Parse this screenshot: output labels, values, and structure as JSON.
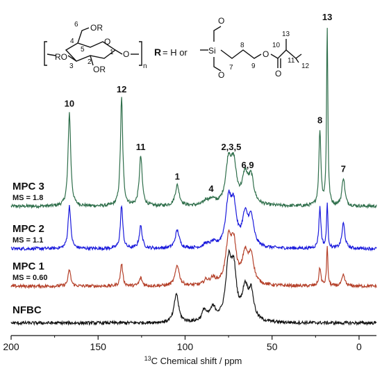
{
  "chart_data": {
    "type": "line",
    "title": "",
    "xlabel": "13C Chemical shift / ppm",
    "xlabel_sup": "13",
    "xlabel_main": "C Chemical shift / ppm",
    "ylabel": "",
    "xlim": [
      200,
      -10
    ],
    "x_reversed": true,
    "x_ticks": [
      200,
      150,
      100,
      50,
      0
    ],
    "x_tick_labels": [
      "200",
      "150",
      "100",
      "50",
      "0"
    ],
    "grid": false,
    "series": [
      {
        "name": "MPC 3",
        "sublabel": "MS = 1.8",
        "color": "#2e6e4a",
        "peaks": [
          {
            "x": 166.5,
            "height": 1.0,
            "width": 0.9
          },
          {
            "x": 136.5,
            "height": 1.15,
            "width": 0.8
          },
          {
            "x": 125.5,
            "height": 0.53,
            "width": 1.0
          },
          {
            "x": 104.5,
            "height": 0.22,
            "width": 1.4
          },
          {
            "x": 88.0,
            "height": 0.05,
            "width": 1.5
          },
          {
            "x": 84.5,
            "height": 0.06,
            "width": 2.0
          },
          {
            "x": 75.0,
            "height": 0.45,
            "width": 2.0
          },
          {
            "x": 72.0,
            "height": 0.38,
            "width": 1.8
          },
          {
            "x": 65.5,
            "height": 0.3,
            "width": 2.0
          },
          {
            "x": 62.0,
            "height": 0.27,
            "width": 1.8
          },
          {
            "x": 22.5,
            "height": 0.8,
            "width": 0.7
          },
          {
            "x": 18.3,
            "height": 1.9,
            "width": 0.45
          },
          {
            "x": 9.0,
            "height": 0.3,
            "width": 1.0
          }
        ]
      },
      {
        "name": "MPC 2",
        "sublabel": "MS = 1.1",
        "color": "#1a1adc",
        "peaks": [
          {
            "x": 166.5,
            "height": 0.48,
            "width": 0.9
          },
          {
            "x": 136.5,
            "height": 0.48,
            "width": 0.8
          },
          {
            "x": 125.5,
            "height": 0.25,
            "width": 1.0
          },
          {
            "x": 104.5,
            "height": 0.2,
            "width": 1.4
          },
          {
            "x": 88.0,
            "height": 0.04,
            "width": 1.5
          },
          {
            "x": 84.0,
            "height": 0.05,
            "width": 2.0
          },
          {
            "x": 75.0,
            "height": 0.5,
            "width": 2.0
          },
          {
            "x": 72.0,
            "height": 0.4,
            "width": 1.8
          },
          {
            "x": 65.5,
            "height": 0.33,
            "width": 2.0
          },
          {
            "x": 62.0,
            "height": 0.3,
            "width": 1.8
          },
          {
            "x": 22.5,
            "height": 0.45,
            "width": 0.7
          },
          {
            "x": 18.3,
            "height": 0.5,
            "width": 0.45
          },
          {
            "x": 9.0,
            "height": 0.28,
            "width": 1.0
          }
        ]
      },
      {
        "name": "MPC 1",
        "sublabel": "MS = 0.60",
        "color": "#b5412a",
        "peaks": [
          {
            "x": 166.5,
            "height": 0.18,
            "width": 0.9
          },
          {
            "x": 136.5,
            "height": 0.25,
            "width": 0.8
          },
          {
            "x": 125.5,
            "height": 0.09,
            "width": 1.0
          },
          {
            "x": 104.5,
            "height": 0.23,
            "width": 1.4
          },
          {
            "x": 88.0,
            "height": 0.05,
            "width": 1.5
          },
          {
            "x": 84.0,
            "height": 0.07,
            "width": 2.0
          },
          {
            "x": 75.0,
            "height": 0.47,
            "width": 2.0
          },
          {
            "x": 72.0,
            "height": 0.4,
            "width": 1.8
          },
          {
            "x": 65.5,
            "height": 0.32,
            "width": 2.0
          },
          {
            "x": 62.0,
            "height": 0.3,
            "width": 1.8
          },
          {
            "x": 22.5,
            "height": 0.2,
            "width": 0.7
          },
          {
            "x": 18.3,
            "height": 0.43,
            "width": 0.45
          },
          {
            "x": 9.0,
            "height": 0.12,
            "width": 1.0
          }
        ]
      },
      {
        "name": "NFBC",
        "sublabel": "",
        "color": "#111111",
        "peaks": [
          {
            "x": 105.0,
            "height": 0.32,
            "width": 1.5
          },
          {
            "x": 89.0,
            "height": 0.12,
            "width": 1.5
          },
          {
            "x": 84.0,
            "height": 0.14,
            "width": 2.2
          },
          {
            "x": 75.0,
            "height": 0.62,
            "width": 2.0
          },
          {
            "x": 72.0,
            "height": 0.5,
            "width": 1.8
          },
          {
            "x": 65.5,
            "height": 0.34,
            "width": 2.0
          },
          {
            "x": 62.0,
            "height": 0.3,
            "width": 1.8
          }
        ]
      }
    ],
    "peak_annotations": [
      {
        "text": "10",
        "x": 166.5,
        "series": 0
      },
      {
        "text": "12",
        "x": 136.5,
        "series": 0
      },
      {
        "text": "11",
        "x": 125.5,
        "series": 0
      },
      {
        "text": "1",
        "x": 104.5,
        "series": 0
      },
      {
        "text": "4",
        "x": 85.0,
        "series": 0
      },
      {
        "text": "2,3,5",
        "x": 73.5,
        "series": 0
      },
      {
        "text": "6,9",
        "x": 64.0,
        "series": 0
      },
      {
        "text": "8",
        "x": 22.5,
        "series": 0
      },
      {
        "text": "13",
        "x": 18.3,
        "series": 0
      },
      {
        "text": "7",
        "x": 9.0,
        "series": 0
      }
    ]
  },
  "structure": {
    "r_label": "R",
    "r_definition": "= H or",
    "n_label": "n",
    "subst": {
      "O_ring": "O",
      "O6": "OR",
      "O3": "RO",
      "O2": "OR",
      "O_glyc": "O",
      "atoms": [
        "1",
        "2",
        "3",
        "4",
        "5",
        "6"
      ]
    },
    "silane": {
      "si": "Si",
      "o_top": "O",
      "o_bottom": "O",
      "o_ester": "O",
      "o_carbonyl": "O",
      "atoms": [
        "7",
        "8",
        "9",
        "10",
        "11",
        "12",
        "13"
      ]
    }
  }
}
